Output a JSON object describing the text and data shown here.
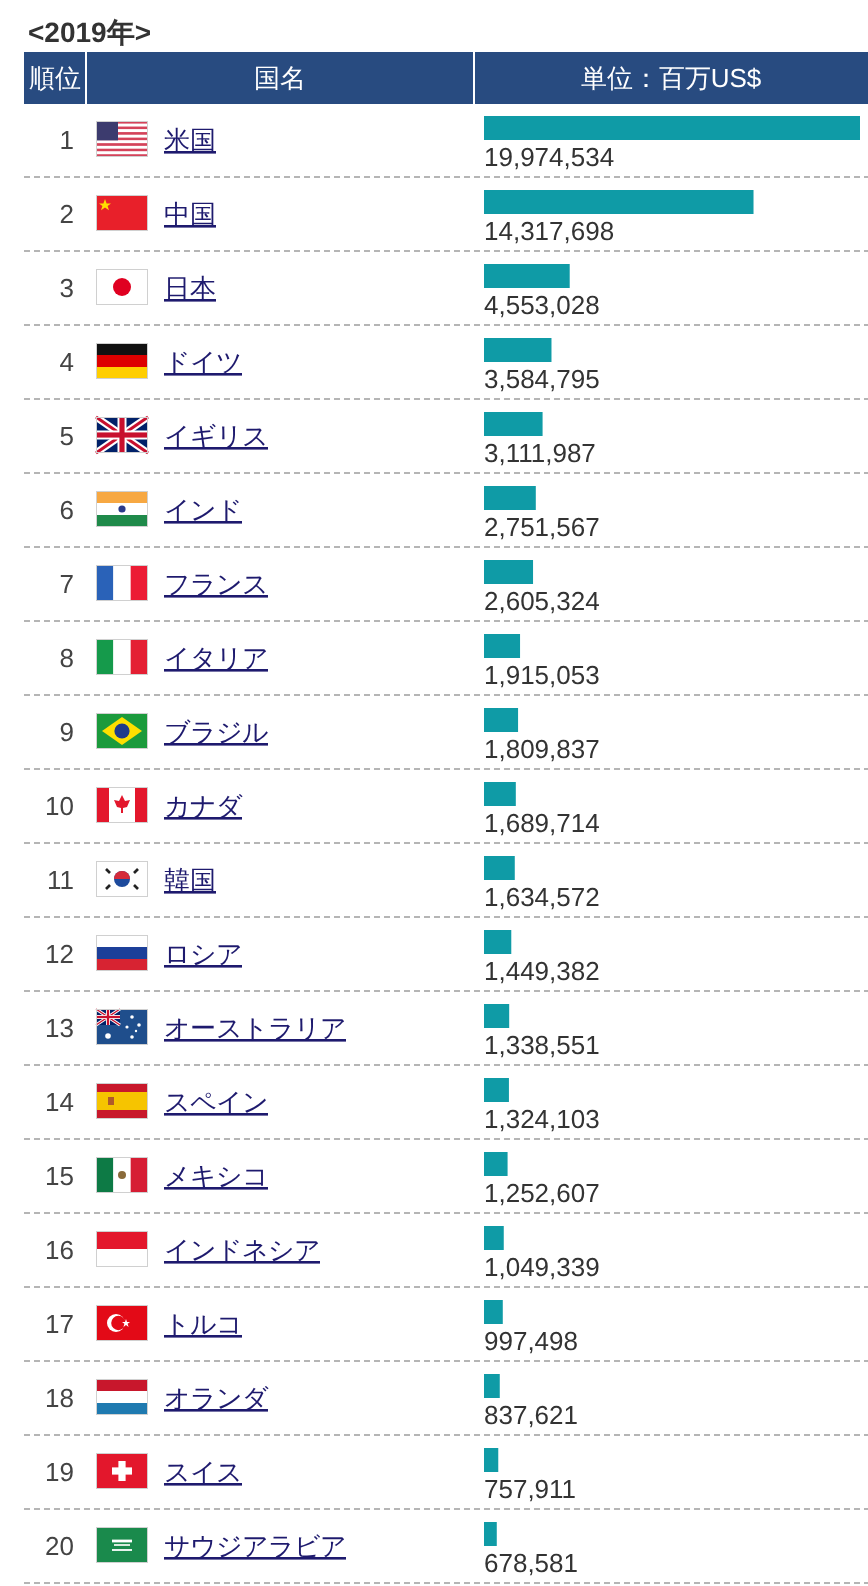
{
  "chart_data": {
    "type": "bar",
    "orientation": "horizontal",
    "title": "<2019年>",
    "y2label": "順位",
    "ylabel": "国名",
    "xlabel": "単位：百万US$",
    "y2_categories": [
      "1",
      "2",
      "3",
      "4",
      "5",
      "6",
      "7",
      "8",
      "9",
      "10",
      "11",
      "12",
      "13",
      "14",
      "15",
      "16",
      "17",
      "18",
      "19",
      "20"
    ],
    "categories": [
      "米国",
      "中国",
      "日本",
      "ドイツ",
      "イギリス",
      "インド",
      "フランス",
      "イタリア",
      "ブラジル",
      "カナダ",
      "韓国",
      "ロシア",
      "オーストラリア",
      "スペイン",
      "メキシコ",
      "インドネシア",
      "トルコ",
      "オランダ",
      "スイス",
      "サウジアラビア"
    ],
    "values": [
      19974534,
      14317698,
      4553028,
      3584795,
      3111987,
      2751567,
      2605324,
      1915053,
      1809837,
      1689714,
      1634572,
      1449382,
      1338551,
      1324103,
      1252607,
      1049339,
      997498,
      837621,
      757911,
      678581
    ],
    "value_labels": [
      "19,974,534",
      "14,317,698",
      "4,553,028",
      "3,584,795",
      "3,111,987",
      "2,751,567",
      "2,605,324",
      "1,915,053",
      "1,809,837",
      "1,689,714",
      "1,634,572",
      "1,449,382",
      "1,338,551",
      "1,324,103",
      "1,252,607",
      "1,049,339",
      "997,498",
      "837,621",
      "757,911",
      "678,581"
    ],
    "color": "#0f9ba6"
  }
}
